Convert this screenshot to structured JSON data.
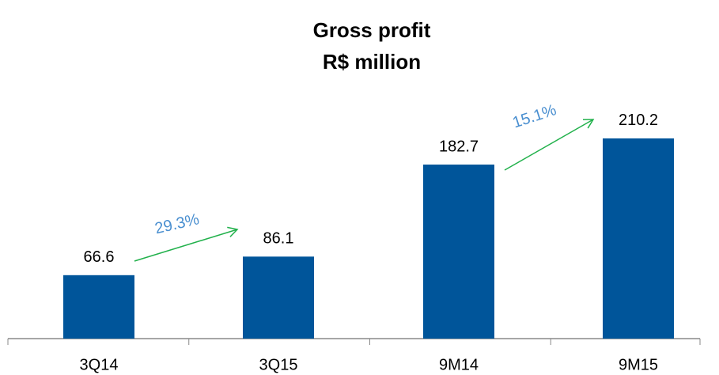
{
  "chart_data": {
    "type": "bar",
    "title": "Gross profit",
    "subtitle": "R$ million",
    "categories": [
      "3Q14",
      "3Q15",
      "9M14",
      "9M15"
    ],
    "values": [
      66.6,
      86.1,
      182.7,
      210.2
    ],
    "color": "#00559a",
    "ylim": [
      0,
      250
    ],
    "annotations": [
      "29.3%",
      "15.1%"
    ],
    "annotation_color": "#4a8fd0",
    "arrow_color": "#22b14c"
  }
}
